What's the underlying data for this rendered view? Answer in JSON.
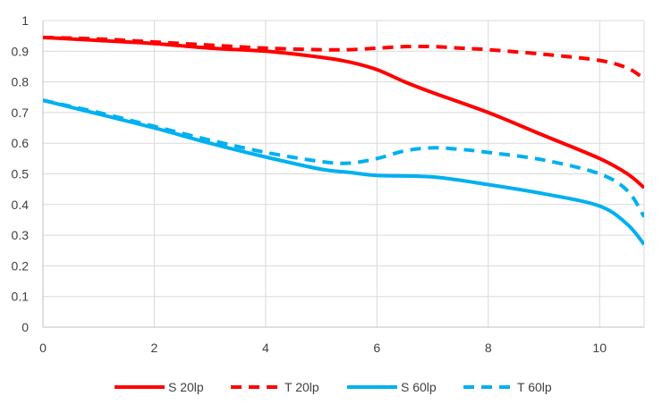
{
  "chart_data": {
    "type": "line",
    "title": "",
    "xlabel": "",
    "ylabel": "",
    "xlim": [
      0,
      10.8
    ],
    "ylim": [
      0,
      1
    ],
    "grid": true,
    "legend": "bottom",
    "x_ticks": [
      {
        "value": 0,
        "label": "0"
      },
      {
        "value": 2,
        "label": "2"
      },
      {
        "value": 4,
        "label": "4"
      },
      {
        "value": 6,
        "label": "6"
      },
      {
        "value": 8,
        "label": "8"
      },
      {
        "value": 10,
        "label": "10"
      }
    ],
    "y_ticks": [
      {
        "value": 0,
        "label": "0"
      },
      {
        "value": 0.1,
        "label": "0.1"
      },
      {
        "value": 0.2,
        "label": "0.2"
      },
      {
        "value": 0.3,
        "label": "0.3"
      },
      {
        "value": 0.4,
        "label": "0.4"
      },
      {
        "value": 0.5,
        "label": "0.5"
      },
      {
        "value": 0.6,
        "label": "0.6"
      },
      {
        "value": 0.7,
        "label": "0.7"
      },
      {
        "value": 0.8,
        "label": "0.8"
      },
      {
        "value": 0.9,
        "label": "0.9"
      },
      {
        "value": 1,
        "label": "1"
      }
    ],
    "series": [
      {
        "name": "S 20lp",
        "color": "#ff0000",
        "dashed": false,
        "x": [
          0,
          1,
          2,
          3,
          4,
          5,
          5.5,
          6,
          6.5,
          7,
          8,
          9,
          10,
          10.5,
          10.8
        ],
        "y": [
          0.945,
          0.935,
          0.925,
          0.91,
          0.9,
          0.88,
          0.865,
          0.84,
          0.8,
          0.765,
          0.7,
          0.625,
          0.55,
          0.5,
          0.455
        ]
      },
      {
        "name": "T 20lp",
        "color": "#ff0000",
        "dashed": true,
        "x": [
          0,
          1,
          2,
          3,
          4,
          5,
          5.5,
          6,
          6.5,
          7,
          7.5,
          8,
          9,
          10,
          10.5,
          10.8
        ],
        "y": [
          0.945,
          0.94,
          0.93,
          0.92,
          0.91,
          0.905,
          0.905,
          0.91,
          0.915,
          0.915,
          0.91,
          0.905,
          0.89,
          0.87,
          0.845,
          0.81
        ]
      },
      {
        "name": "S 60lp",
        "color": "#00b0f0",
        "dashed": false,
        "x": [
          0,
          1,
          2,
          3,
          4,
          5,
          5.5,
          6,
          7,
          8,
          9,
          10,
          10.5,
          10.8
        ],
        "y": [
          0.74,
          0.695,
          0.65,
          0.6,
          0.555,
          0.515,
          0.505,
          0.495,
          0.49,
          0.465,
          0.435,
          0.395,
          0.335,
          0.27
        ]
      },
      {
        "name": "T 60lp",
        "color": "#00b0f0",
        "dashed": true,
        "x": [
          0,
          1,
          2,
          3,
          4,
          5,
          5.5,
          6,
          6.5,
          7,
          7.5,
          8,
          9,
          10,
          10.5,
          10.8
        ],
        "y": [
          0.74,
          0.7,
          0.655,
          0.61,
          0.57,
          0.54,
          0.535,
          0.55,
          0.575,
          0.585,
          0.58,
          0.57,
          0.545,
          0.5,
          0.445,
          0.36
        ]
      }
    ]
  }
}
